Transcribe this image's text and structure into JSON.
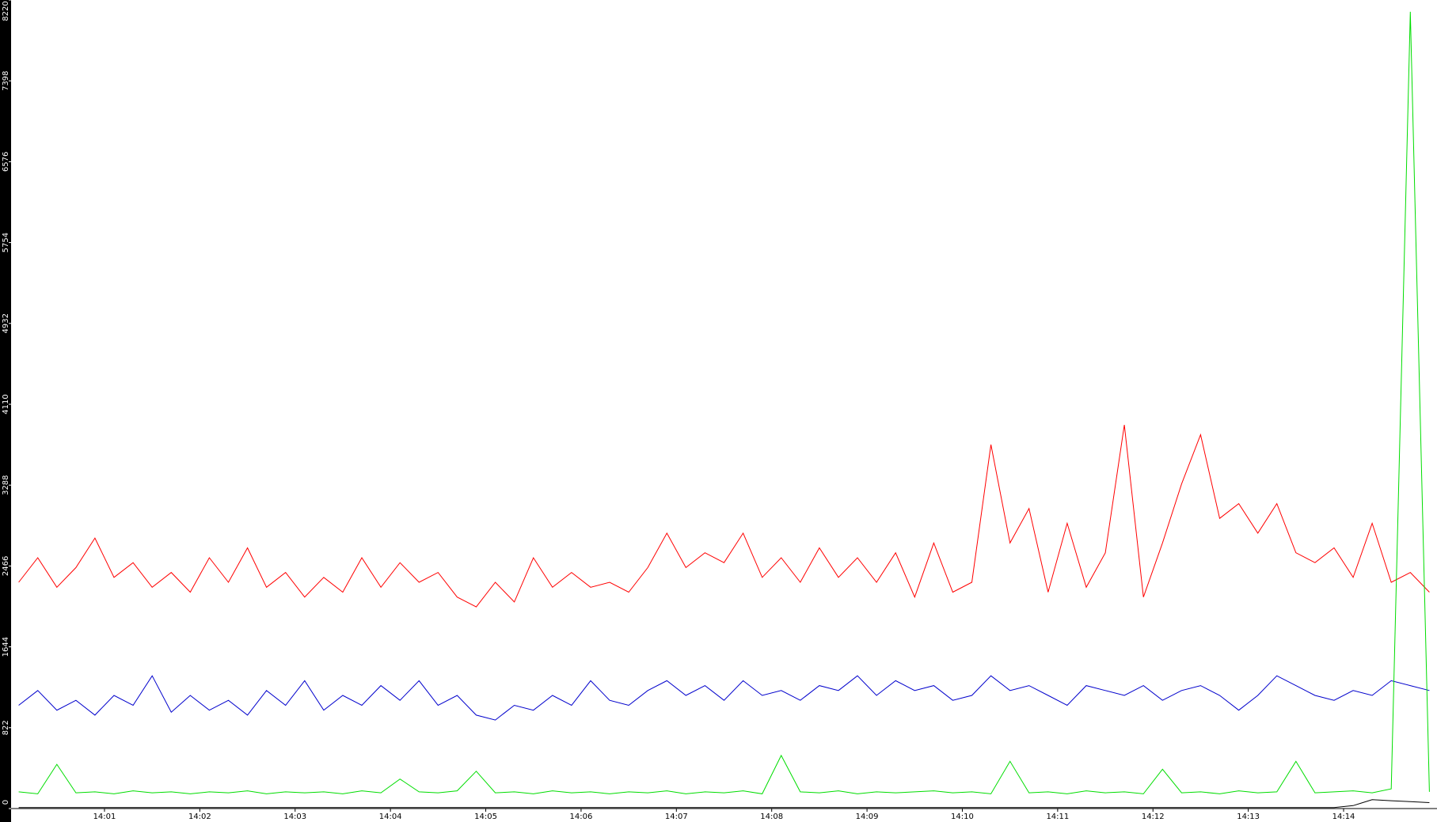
{
  "chart_data": {
    "type": "line",
    "x": [
      0.1,
      0.3,
      0.5,
      0.7,
      0.9,
      1.1,
      1.3,
      1.5,
      1.7,
      1.9,
      2.1,
      2.3,
      2.5,
      2.7,
      2.9,
      3.1,
      3.3,
      3.5,
      3.7,
      3.9,
      4.1,
      4.3,
      4.5,
      4.7,
      4.9,
      5.1,
      5.3,
      5.5,
      5.7,
      5.9,
      6.1,
      6.3,
      6.5,
      6.7,
      6.9,
      7.1,
      7.3,
      7.5,
      7.7,
      7.9,
      8.1,
      8.3,
      8.5,
      8.7,
      8.9,
      9.1,
      9.3,
      9.5,
      9.7,
      9.9,
      10.1,
      10.3,
      10.5,
      10.7,
      10.9,
      11.1,
      11.3,
      11.5,
      11.7,
      11.9,
      12.1,
      12.3,
      12.5,
      12.7,
      12.9,
      13.1,
      13.3,
      13.5,
      13.7,
      13.9,
      14.1,
      14.3,
      14.5,
      14.7,
      14.9
    ],
    "series": [
      {
        "color": "#ff0000",
        "values": [
          2300,
          2550,
          2250,
          2450,
          2750,
          2350,
          2500,
          2250,
          2400,
          2200,
          2550,
          2300,
          2650,
          2250,
          2400,
          2150,
          2350,
          2200,
          2550,
          2250,
          2500,
          2300,
          2400,
          2150,
          2050,
          2300,
          2100,
          2550,
          2250,
          2400,
          2250,
          2300,
          2200,
          2450,
          2800,
          2450,
          2600,
          2500,
          2800,
          2350,
          2550,
          2300,
          2650,
          2350,
          2550,
          2300,
          2600,
          2150,
          2700,
          2200,
          2300,
          3700,
          2700,
          3050,
          2200,
          2900,
          2250,
          2600,
          3900,
          2150,
          2700,
          3300,
          3800,
          2950,
          3100,
          2800,
          3100,
          2600,
          2500,
          2650,
          2350,
          2900,
          2300,
          2400,
          2200
        ]
      },
      {
        "color": "#0000cc",
        "values": [
          1050,
          1200,
          1000,
          1100,
          950,
          1150,
          1050,
          1350,
          980,
          1150,
          1000,
          1100,
          950,
          1200,
          1050,
          1300,
          1000,
          1150,
          1050,
          1250,
          1100,
          1300,
          1050,
          1150,
          950,
          900,
          1050,
          1000,
          1150,
          1050,
          1300,
          1100,
          1050,
          1200,
          1300,
          1150,
          1250,
          1100,
          1300,
          1150,
          1200,
          1100,
          1250,
          1200,
          1350,
          1150,
          1300,
          1200,
          1250,
          1100,
          1150,
          1350,
          1200,
          1250,
          1150,
          1050,
          1250,
          1200,
          1150,
          1250,
          1100,
          1200,
          1250,
          1150,
          1000,
          1150,
          1350,
          1250,
          1150,
          1100,
          1200,
          1150,
          1300,
          1250,
          1200
        ]
      },
      {
        "color": "#00dd00",
        "values": [
          170,
          150,
          450,
          160,
          170,
          150,
          180,
          160,
          170,
          150,
          170,
          160,
          180,
          150,
          170,
          160,
          170,
          150,
          180,
          160,
          300,
          170,
          160,
          180,
          380,
          160,
          170,
          150,
          180,
          160,
          170,
          150,
          170,
          160,
          180,
          150,
          170,
          160,
          180,
          150,
          540,
          170,
          160,
          180,
          150,
          170,
          160,
          170,
          180,
          160,
          170,
          150,
          480,
          160,
          170,
          150,
          180,
          160,
          170,
          150,
          400,
          160,
          170,
          150,
          180,
          160,
          170,
          480,
          160,
          170,
          180,
          160,
          200,
          8100,
          170
        ]
      },
      {
        "color": "#000000",
        "values": [
          10,
          10,
          10,
          10,
          10,
          10,
          10,
          10,
          10,
          10,
          10,
          10,
          10,
          10,
          10,
          10,
          10,
          10,
          10,
          10,
          10,
          10,
          10,
          10,
          10,
          10,
          10,
          10,
          10,
          10,
          10,
          10,
          10,
          10,
          10,
          10,
          10,
          10,
          10,
          10,
          10,
          10,
          10,
          10,
          10,
          10,
          10,
          10,
          10,
          10,
          10,
          10,
          10,
          10,
          10,
          10,
          10,
          10,
          10,
          10,
          10,
          10,
          10,
          10,
          10,
          10,
          10,
          10,
          10,
          10,
          30,
          90,
          80,
          70,
          60
        ]
      }
    ],
    "xlim": [
      0.02,
      14.98
    ],
    "xticks": [
      {
        "value": 1,
        "label": "14:01"
      },
      {
        "value": 2,
        "label": "14:02"
      },
      {
        "value": 3,
        "label": "14:03"
      },
      {
        "value": 4,
        "label": "14:04"
      },
      {
        "value": 5,
        "label": "14:05"
      },
      {
        "value": 6,
        "label": "14:06"
      },
      {
        "value": 7,
        "label": "14:07"
      },
      {
        "value": 8,
        "label": "14:08"
      },
      {
        "value": 9,
        "label": "14:09"
      },
      {
        "value": 10,
        "label": "14:10"
      },
      {
        "value": 11,
        "label": "14:11"
      },
      {
        "value": 12,
        "label": "14:12"
      },
      {
        "value": 13,
        "label": "14:13"
      },
      {
        "value": 14,
        "label": "14:14"
      }
    ],
    "ylim": [
      0,
      8220
    ],
    "yticks": [
      0,
      822,
      1644,
      2466,
      3288,
      4110,
      4932,
      5754,
      6576,
      7398,
      8220
    ]
  }
}
